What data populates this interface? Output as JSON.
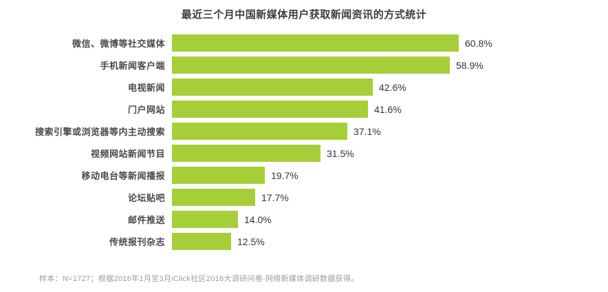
{
  "title": "最近三个月中国新媒体用户获取新闻资讯的方式统计",
  "footer": "样本：N=1727；根据2016年1月至3月iClick社区2016大调研问卷-网络新媒体调研数据获得。",
  "colors": {
    "bar": "#a6ce39",
    "title_text": "#3c3c3c",
    "label_text": "#4a4a4a",
    "value_text": "#333333",
    "footer_text": "#9b9b9b",
    "background": "#ffffff"
  },
  "chart_data": {
    "type": "bar",
    "orientation": "horizontal",
    "title": "最近三个月中国新媒体用户获取新闻资讯的方式统计",
    "categories": [
      "微信、微博等社交媒体",
      "手机新闻客户端",
      "电视新闻",
      "门户网站",
      "搜索引擎或浏览器等内主动搜索",
      "视频网站新闻节目",
      "移动电台等新闻播报",
      "论坛贴吧",
      "邮件推送",
      "传统报刊杂志"
    ],
    "values": [
      60.8,
      58.9,
      42.6,
      41.6,
      37.1,
      31.5,
      19.7,
      17.7,
      14.0,
      12.5
    ],
    "value_labels": [
      "60.8%",
      "58.9%",
      "42.6%",
      "41.6%",
      "37.1%",
      "31.5%",
      "19.7%",
      "17.7%",
      "14.0%",
      "12.5%"
    ],
    "xlabel": "",
    "ylabel": "",
    "xlim": [
      0,
      65
    ],
    "grid": false,
    "legend": "none",
    "unit": "%"
  }
}
